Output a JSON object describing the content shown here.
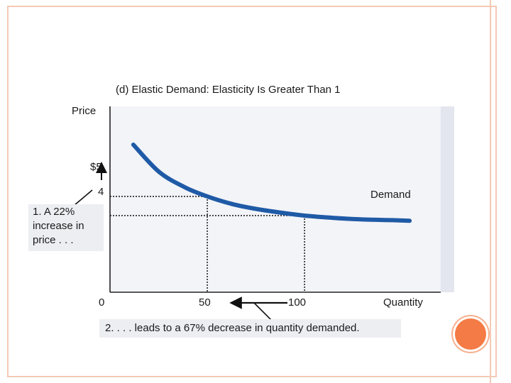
{
  "chart_data": {
    "type": "line",
    "title": "(d) Elastic Demand: Elasticity Is Greater Than 1",
    "xlabel": "Quantity",
    "ylabel": "Price",
    "origin_label": "0",
    "x_ticks": [
      {
        "value": 50,
        "label": "50"
      },
      {
        "value": 100,
        "label": "100"
      }
    ],
    "y_ticks": [
      {
        "value": 5,
        "label": "$5"
      },
      {
        "value": 4,
        "label": "4"
      }
    ],
    "series": [
      {
        "name": "Demand",
        "points": [
          [
            12,
            7.7
          ],
          [
            25,
            6.3
          ],
          [
            38,
            5.5
          ],
          [
            50,
            5
          ],
          [
            63,
            4.6
          ],
          [
            75,
            4.35
          ],
          [
            88,
            4.15
          ],
          [
            100,
            4
          ],
          [
            115,
            3.88
          ],
          [
            130,
            3.8
          ],
          [
            145,
            3.76
          ],
          [
            154,
            3.73
          ]
        ]
      }
    ],
    "highlight_points": [
      {
        "x": 50,
        "y": 5
      },
      {
        "x": 100,
        "y": 4
      }
    ],
    "xlim": [
      0,
      170
    ],
    "ylim": [
      0,
      9.7
    ],
    "grid": false,
    "colors": {
      "curve": "#1f5aa6",
      "guides": "#222222",
      "axis": "#222222"
    }
  },
  "annotations": {
    "price_callout": "1. A 22% increase in price . . .",
    "quantity_callout": "2. . . . leads to a 67% decrease in quantity demanded."
  }
}
